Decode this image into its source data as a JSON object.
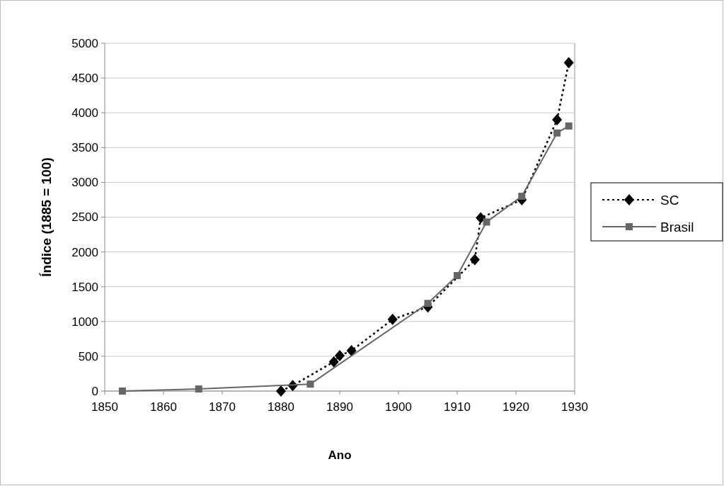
{
  "chart_data": {
    "type": "line",
    "xlabel": "Ano",
    "ylabel": "Índice (1885 = 100)",
    "xlim": [
      1850,
      1930
    ],
    "xticks": [
      1850,
      1860,
      1870,
      1880,
      1890,
      1900,
      1910,
      1920,
      1930
    ],
    "ylim": [
      0,
      5000
    ],
    "yticks": [
      0,
      500,
      1000,
      1500,
      2000,
      2500,
      3000,
      3500,
      4000,
      4500,
      5000
    ],
    "grid": "y",
    "legend": "right",
    "series": [
      {
        "name": "SC",
        "color": "#000000",
        "marker": "diamond",
        "line_style": "dotted",
        "x": [
          1880,
          1882,
          1889,
          1890,
          1892,
          1899,
          1905,
          1913,
          1914,
          1921,
          1927,
          1929
        ],
        "values": [
          0,
          80,
          420,
          510,
          580,
          1030,
          1210,
          1890,
          2490,
          2750,
          3900,
          4720
        ]
      },
      {
        "name": "Brasil",
        "color": "#666666",
        "marker": "square",
        "line_style": "solid",
        "x": [
          1853,
          1866,
          1885,
          1905,
          1910,
          1915,
          1921,
          1927,
          1929
        ],
        "values": [
          0,
          30,
          100,
          1260,
          1660,
          2430,
          2800,
          3710,
          3810
        ]
      }
    ]
  }
}
